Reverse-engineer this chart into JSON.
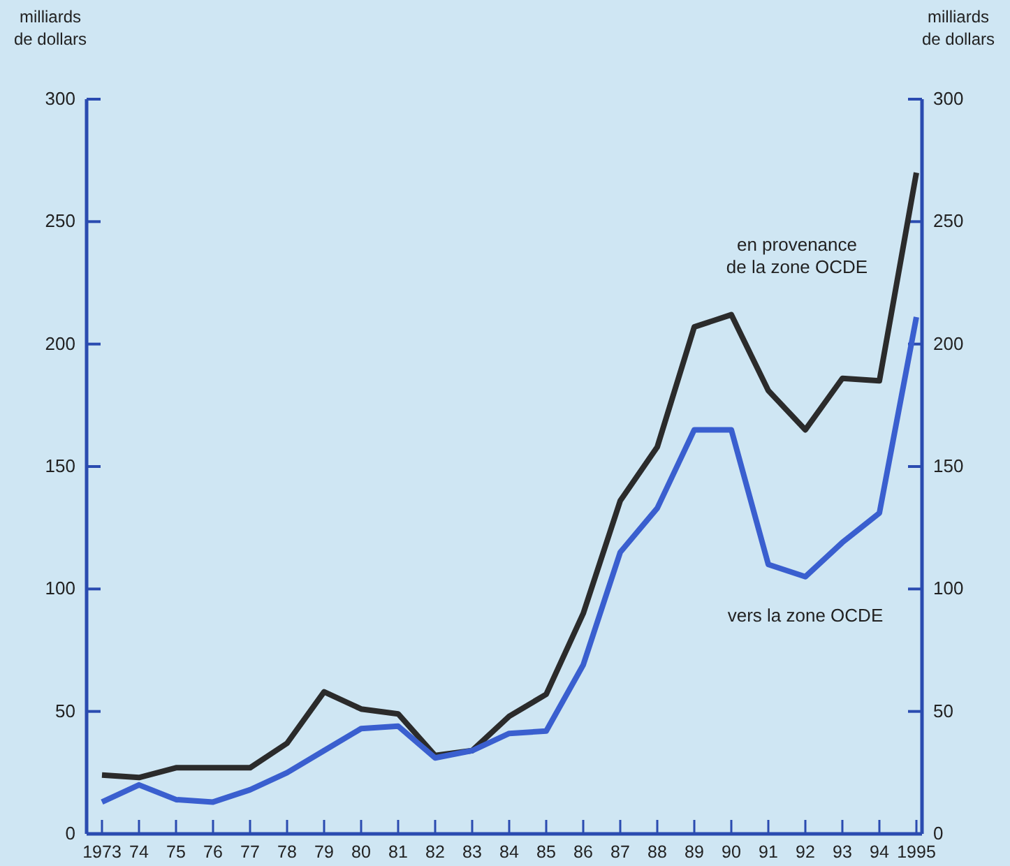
{
  "chart_data": {
    "type": "line",
    "ylabel": "milliards\nde dollars",
    "y2label": "milliards\nde dollars",
    "categories": [
      "1973",
      "74",
      "75",
      "76",
      "77",
      "78",
      "79",
      "80",
      "81",
      "82",
      "83",
      "84",
      "85",
      "86",
      "87",
      "88",
      "89",
      "90",
      "91",
      "92",
      "93",
      "94",
      "1995"
    ],
    "series": [
      {
        "name": "en provenance\nde la zone OCDE",
        "color": "#2b2b2b",
        "values": [
          24,
          23,
          27,
          27,
          27,
          37,
          58,
          51,
          49,
          32,
          34,
          48,
          57,
          90,
          136,
          158,
          207,
          212,
          181,
          165,
          186,
          185,
          270
        ]
      },
      {
        "name": "vers la zone OCDE",
        "color": "#3a5fcf",
        "values": [
          13,
          20,
          14,
          13,
          18,
          25,
          34,
          43,
          44,
          31,
          34,
          41,
          42,
          69,
          115,
          133,
          165,
          165,
          110,
          105,
          119,
          131,
          211
        ]
      }
    ],
    "ylim": [
      0,
      300
    ],
    "yticks": [
      0,
      50,
      100,
      150,
      200,
      250,
      300
    ],
    "y2lim": [
      0,
      300
    ],
    "y2ticks": [
      0,
      50,
      100,
      150,
      200,
      250,
      300
    ],
    "grid": false,
    "marker": "none",
    "line_style": "solid"
  }
}
